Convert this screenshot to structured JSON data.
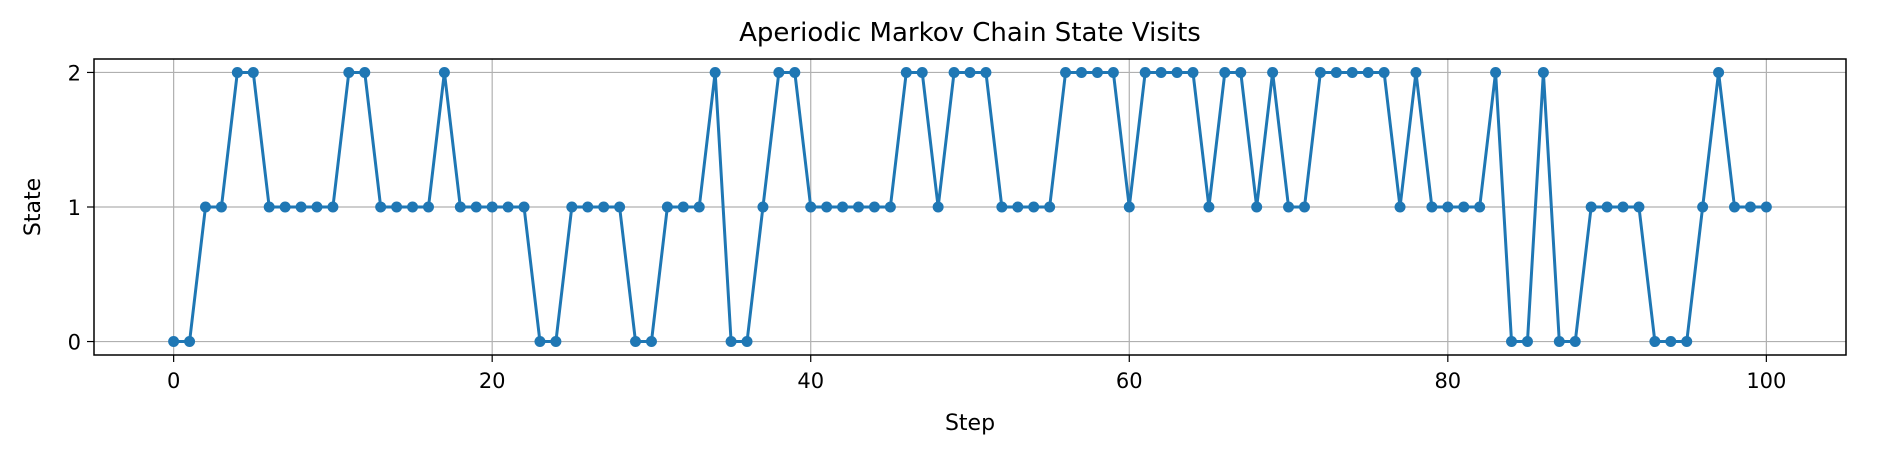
{
  "chart_data": {
    "type": "line",
    "title": "Aperiodic Markov Chain State Visits",
    "xlabel": "Step",
    "ylabel": "State",
    "xlim": [
      -5,
      105
    ],
    "ylim": [
      -0.1,
      2.1
    ],
    "xticks": [
      0,
      20,
      40,
      60,
      80,
      100
    ],
    "yticks": [
      0,
      1,
      2
    ],
    "grid": true,
    "marker": "circle",
    "color": "#1f77b4",
    "x": [
      0,
      1,
      2,
      3,
      4,
      5,
      6,
      7,
      8,
      9,
      10,
      11,
      12,
      13,
      14,
      15,
      16,
      17,
      18,
      19,
      20,
      21,
      22,
      23,
      24,
      25,
      26,
      27,
      28,
      29,
      30,
      31,
      32,
      33,
      34,
      35,
      36,
      37,
      38,
      39,
      40,
      41,
      42,
      43,
      44,
      45,
      46,
      47,
      48,
      49,
      50,
      51,
      52,
      53,
      54,
      55,
      56,
      57,
      58,
      59,
      60,
      61,
      62,
      63,
      64,
      65,
      66,
      67,
      68,
      69,
      70,
      71,
      72,
      73,
      74,
      75,
      76,
      77,
      78,
      79,
      80,
      81,
      82,
      83,
      84,
      85,
      86,
      87,
      88,
      89,
      90,
      91,
      92,
      93,
      94,
      95,
      96,
      97,
      98,
      99,
      100
    ],
    "y": [
      0,
      0,
      1,
      1,
      2,
      2,
      1,
      1,
      1,
      1,
      1,
      2,
      2,
      1,
      1,
      1,
      1,
      2,
      1,
      1,
      1,
      1,
      1,
      0,
      0,
      1,
      1,
      1,
      1,
      0,
      0,
      1,
      1,
      1,
      2,
      0,
      0,
      1,
      2,
      2,
      1,
      1,
      1,
      1,
      1,
      1,
      2,
      2,
      1,
      2,
      2,
      2,
      1,
      1,
      1,
      1,
      2,
      2,
      2,
      2,
      1,
      2,
      2,
      2,
      2,
      1,
      2,
      2,
      1,
      2,
      1,
      1,
      2,
      2,
      2,
      2,
      2,
      1,
      2,
      1,
      1,
      1,
      1,
      2,
      0,
      0,
      2,
      0,
      0,
      1,
      1,
      1,
      1,
      0,
      0,
      0,
      1,
      2,
      1,
      1,
      1
    ]
  }
}
